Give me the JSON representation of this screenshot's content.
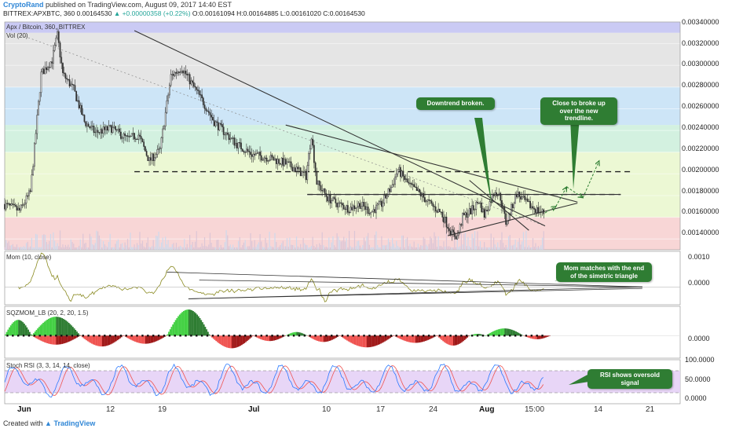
{
  "header": {
    "author": "CryptoRand",
    "published": "published on TradingView.com, August 09, 2017 14:40 EST",
    "quote_prefix": "BITTREX:APXBTC, 360  0.00164530",
    "quote_change": "▲ +0.00000358 (+0.22%)",
    "quote_ohlc": "O:0.00161094  H:0.00164885  L:0.00161020  C:0.00164530"
  },
  "footer": {
    "created_with": "Created with",
    "brand": "TradingView"
  },
  "colors": {
    "up": "#26a69a",
    "down": "#ef5350",
    "candle_body": "#2e2e2e",
    "trendline": "#333333",
    "mom_line": "#8a8a20",
    "stoch_k": "#2979ff",
    "stoch_d": "#ef5350",
    "sqz_green": "#43d043",
    "sqz_dark_green": "#2e7d32",
    "sqz_red": "#ef5350",
    "sqz_dark_red": "#a01818",
    "callout_bg": "#2f7d33"
  },
  "chart_data": [
    {
      "type": "candlestick",
      "title": "Apx / Bitcoin, 360, BITTREX",
      "indicator_label": "Vol (20)",
      "x_ticks": [
        "Jun",
        "12",
        "19",
        "Jul",
        "10",
        "17",
        "24",
        "Aug",
        "15:00",
        "14",
        "21"
      ],
      "ylim": [
        0.0013,
        0.0034
      ],
      "y_ticks": [
        "0.00340000",
        "0.00320000",
        "0.00300000",
        "0.00280000",
        "0.00260000",
        "0.00240000",
        "0.00220000",
        "0.00200000",
        "0.00180000",
        "0.00160000",
        "0.00140000"
      ],
      "zones": [
        {
          "from": 0.0033,
          "to": 0.0034,
          "color": "#b8b8f0"
        },
        {
          "from": 0.0028,
          "to": 0.0033,
          "color": "#dcdcdc"
        },
        {
          "from": 0.00245,
          "to": 0.0028,
          "color": "#bcdcf4"
        },
        {
          "from": 0.0022,
          "to": 0.00245,
          "color": "#c4ecd6"
        },
        {
          "from": 0.0016,
          "to": 0.0022,
          "color": "#e6f6c6"
        },
        {
          "from": 0.0013,
          "to": 0.0016,
          "color": "#f6c8c8"
        }
      ],
      "dashed_levels": [
        0.00202,
        0.00181
      ],
      "close_path": [
        {
          "day": 0,
          "close": 0.00172
        },
        {
          "day": 3,
          "close": 0.00166
        },
        {
          "day": 5,
          "close": 0.00183
        },
        {
          "day": 7,
          "close": 0.00292
        },
        {
          "day": 9,
          "close": 0.00305
        },
        {
          "day": 10,
          "close": 0.00328
        },
        {
          "day": 11,
          "close": 0.00292
        },
        {
          "day": 13,
          "close": 0.00278
        },
        {
          "day": 15,
          "close": 0.00248
        },
        {
          "day": 17,
          "close": 0.00238
        },
        {
          "day": 20,
          "close": 0.00242
        },
        {
          "day": 23,
          "close": 0.00232
        },
        {
          "day": 25,
          "close": 0.00236
        },
        {
          "day": 27,
          "close": 0.00212
        },
        {
          "day": 29,
          "close": 0.00222
        },
        {
          "day": 31,
          "close": 0.0029
        },
        {
          "day": 33,
          "close": 0.00298
        },
        {
          "day": 35,
          "close": 0.00282
        },
        {
          "day": 37,
          "close": 0.00266
        },
        {
          "day": 39,
          "close": 0.00248
        },
        {
          "day": 41,
          "close": 0.00238
        },
        {
          "day": 43,
          "close": 0.00228
        },
        {
          "day": 46,
          "close": 0.00218
        },
        {
          "day": 49,
          "close": 0.00215
        },
        {
          "day": 52,
          "close": 0.0021
        },
        {
          "day": 54,
          "close": 0.00205
        },
        {
          "day": 56,
          "close": 0.00198
        },
        {
          "day": 57,
          "close": 0.00236
        },
        {
          "day": 58,
          "close": 0.00192
        },
        {
          "day": 60,
          "close": 0.00178
        },
        {
          "day": 62,
          "close": 0.00172
        },
        {
          "day": 64,
          "close": 0.00168
        },
        {
          "day": 66,
          "close": 0.00172
        },
        {
          "day": 68,
          "close": 0.00165
        },
        {
          "day": 70,
          "close": 0.00172
        },
        {
          "day": 72,
          "close": 0.0019
        },
        {
          "day": 73,
          "close": 0.00204
        },
        {
          "day": 75,
          "close": 0.0019
        },
        {
          "day": 77,
          "close": 0.00182
        },
        {
          "day": 79,
          "close": 0.00172
        },
        {
          "day": 81,
          "close": 0.00164
        },
        {
          "day": 83,
          "close": 0.00145
        },
        {
          "day": 84,
          "close": 0.00142
        },
        {
          "day": 85,
          "close": 0.0016
        },
        {
          "day": 87,
          "close": 0.00168
        },
        {
          "day": 88,
          "close": 0.00175
        },
        {
          "day": 89,
          "close": 0.00162
        },
        {
          "day": 91,
          "close": 0.00185
        },
        {
          "day": 92,
          "close": 0.00178
        },
        {
          "day": 93,
          "close": 0.00155
        },
        {
          "day": 94,
          "close": 0.00168
        },
        {
          "day": 95,
          "close": 0.00182
        },
        {
          "day": 97,
          "close": 0.00172
        },
        {
          "day": 99,
          "close": 0.00166
        },
        {
          "day": 100,
          "close": 0.00164
        }
      ],
      "trendlines": [
        {
          "from": [
            24,
            0.00332
          ],
          "to": [
            100,
            0.00152
          ]
        },
        {
          "from": [
            52,
            0.00245
          ],
          "to": [
            106,
            0.00174
          ]
        },
        {
          "from": [
            82,
            0.00143
          ],
          "to": [
            106,
            0.00173
          ]
        },
        {
          "from": [
            86,
            0.00194
          ],
          "to": [
            97,
            0.00148
          ]
        },
        {
          "from": [
            56,
            0.00181
          ],
          "to": [
            114,
            0.00181
          ]
        }
      ],
      "projection_arrows": [
        {
          "from": [
            100,
            0.00164
          ],
          "to": [
            102,
            0.0017
          ]
        },
        {
          "from": [
            102,
            0.0017
          ],
          "to": [
            104,
            0.00188
          ]
        },
        {
          "from": [
            104,
            0.00188
          ],
          "to": [
            107,
            0.00178
          ]
        },
        {
          "from": [
            107,
            0.00178
          ],
          "to": [
            110,
            0.00212
          ]
        }
      ],
      "annotations": [
        {
          "text": "Downtrend broken.",
          "target": [
            86,
            0.0018
          ]
        },
        {
          "text": "Close to broke up over the new trendline.",
          "target": [
            101,
            0.0018
          ]
        }
      ]
    },
    {
      "type": "line",
      "title": "Mom (10, close)",
      "ylim": [
        -0.0006,
        0.0012
      ],
      "y_ticks": [
        "0.0010",
        "0.0000"
      ],
      "annotations": [
        {
          "text": "Mom matches with the end of the simetric triangle"
        }
      ]
    },
    {
      "type": "bar",
      "title": "SQZMOM_LB (20, 2, 20, 1.5)",
      "ylim": [
        -0.0005,
        0.00065
      ],
      "y_ticks": [
        "0.0000"
      ],
      "lobes": [
        {
          "start": 0,
          "end": 5,
          "peak": 0.00035
        },
        {
          "start": 5,
          "end": 14,
          "peak": -0.0002
        },
        {
          "start": 5,
          "end": 14,
          "peak": 0.00042
        },
        {
          "start": 14,
          "end": 22,
          "peak": -0.00024
        },
        {
          "start": 22,
          "end": 30,
          "peak": -0.00018
        },
        {
          "start": 30,
          "end": 38,
          "peak": 0.00058
        },
        {
          "start": 38,
          "end": 46,
          "peak": -0.00028
        },
        {
          "start": 46,
          "end": 52,
          "peak": -0.00012
        },
        {
          "start": 52,
          "end": 56,
          "peak": 8e-05
        },
        {
          "start": 56,
          "end": 62,
          "peak": -0.00014
        },
        {
          "start": 62,
          "end": 72,
          "peak": -0.00026
        },
        {
          "start": 72,
          "end": 80,
          "peak": -0.00016
        },
        {
          "start": 80,
          "end": 86,
          "peak": -0.00022
        },
        {
          "start": 86,
          "end": 89,
          "peak": 4e-05
        },
        {
          "start": 89,
          "end": 96,
          "peak": 0.00016
        },
        {
          "start": 96,
          "end": 101,
          "peak": -8e-05
        }
      ]
    },
    {
      "type": "line",
      "title": "Stoch RSI (3, 3, 14, 14, close)",
      "ylim": [
        -10,
        110
      ],
      "y_ticks": [
        "100.0000",
        "50.0000",
        "0.0000"
      ],
      "bands": [
        20,
        80
      ],
      "annotations": [
        {
          "text": "RSI shows oversold signal"
        }
      ]
    }
  ]
}
